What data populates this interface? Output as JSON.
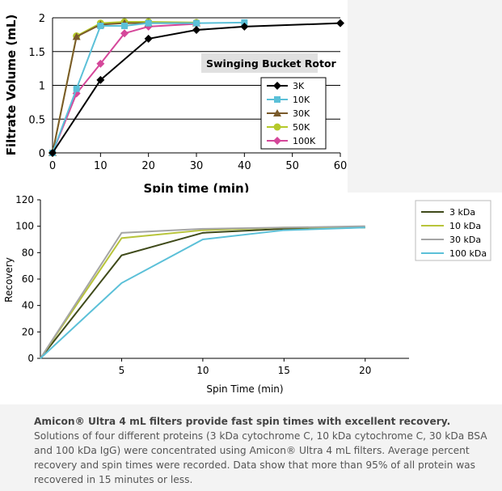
{
  "chart_data": [
    {
      "type": "line",
      "title": "",
      "xlabel": "Spin time (min)",
      "ylabel": "Filtrate Volume (mL)",
      "xlim": [
        0,
        60
      ],
      "ylim": [
        0,
        2
      ],
      "x_ticks": [
        0,
        10,
        20,
        30,
        40,
        50,
        60
      ],
      "y_ticks": [
        "0",
        "0.5",
        "1",
        "1.5",
        "2"
      ],
      "grid": "horizontal",
      "annotation": "Swinging Bucket Rotor",
      "legend_position": "right",
      "series": [
        {
          "name": "3K",
          "color": "#000000",
          "marker": "diamond",
          "x": [
            0,
            10,
            20,
            30,
            40,
            60
          ],
          "y": [
            0,
            1.08,
            1.69,
            1.82,
            1.87,
            1.92
          ]
        },
        {
          "name": "10K",
          "color": "#5bc0d8",
          "marker": "square",
          "x": [
            0,
            5,
            10,
            15,
            20,
            30,
            40
          ],
          "y": [
            0,
            0.95,
            1.88,
            1.88,
            1.92,
            1.92,
            1.93
          ]
        },
        {
          "name": "30K",
          "color": "#7a5a2a",
          "marker": "triangle",
          "x": [
            0,
            5,
            10,
            15,
            20,
            30
          ],
          "y": [
            0,
            1.72,
            1.9,
            1.92,
            1.92,
            1.92
          ]
        },
        {
          "name": "50K",
          "color": "#b5c92a",
          "marker": "circle",
          "x": [
            0,
            5,
            10,
            15,
            20,
            30
          ],
          "y": [
            0,
            1.73,
            1.92,
            1.94,
            1.94,
            1.93
          ]
        },
        {
          "name": "100K",
          "color": "#d5479a",
          "marker": "diamond",
          "x": [
            0,
            5,
            10,
            15,
            20,
            30
          ],
          "y": [
            0,
            0.88,
            1.32,
            1.77,
            1.87,
            1.91
          ]
        }
      ]
    },
    {
      "type": "line",
      "title": "",
      "xlabel": "Spin Time (min)",
      "ylabel": "Recovery",
      "xlim": [
        0,
        22.7
      ],
      "ylim": [
        0,
        120
      ],
      "x_ticks": [
        5,
        10,
        15,
        20
      ],
      "y_ticks": [
        0,
        20,
        40,
        60,
        80,
        100,
        120
      ],
      "grid": "none",
      "legend_position": "right",
      "series": [
        {
          "name": "3 kDa",
          "color": "#3f4a1a",
          "x": [
            0,
            5,
            10,
            15,
            20
          ],
          "y": [
            0,
            78,
            95,
            98,
            99
          ]
        },
        {
          "name": "10 kDa",
          "color": "#b8c43a",
          "x": [
            0,
            5,
            10,
            15,
            20
          ],
          "y": [
            0,
            91,
            97,
            99,
            99
          ]
        },
        {
          "name": "30 kDa",
          "color": "#a5a5a5",
          "x": [
            0,
            5,
            10,
            15,
            20
          ],
          "y": [
            0,
            95,
            98,
            99,
            100
          ]
        },
        {
          "name": "100 kDa",
          "color": "#5bc0d8",
          "x": [
            0,
            5,
            10,
            15,
            20
          ],
          "y": [
            0,
            57,
            90,
            97,
            99
          ]
        }
      ]
    }
  ],
  "caption": {
    "bold": "Amicon® Ultra 4 mL filters provide fast spin times with excellent recovery.",
    "text": " Solutions of four different proteins (3 kDa cytochrome C, 10 kDa cytochrome C, 30 kDa BSA and 100 kDa IgG) were concentrated using Amicon® Ultra 4 mL filters. Average percent recovery and spin times were recorded. Data show that more than 95% of all protein was recovered in 15 minutes or less."
  }
}
